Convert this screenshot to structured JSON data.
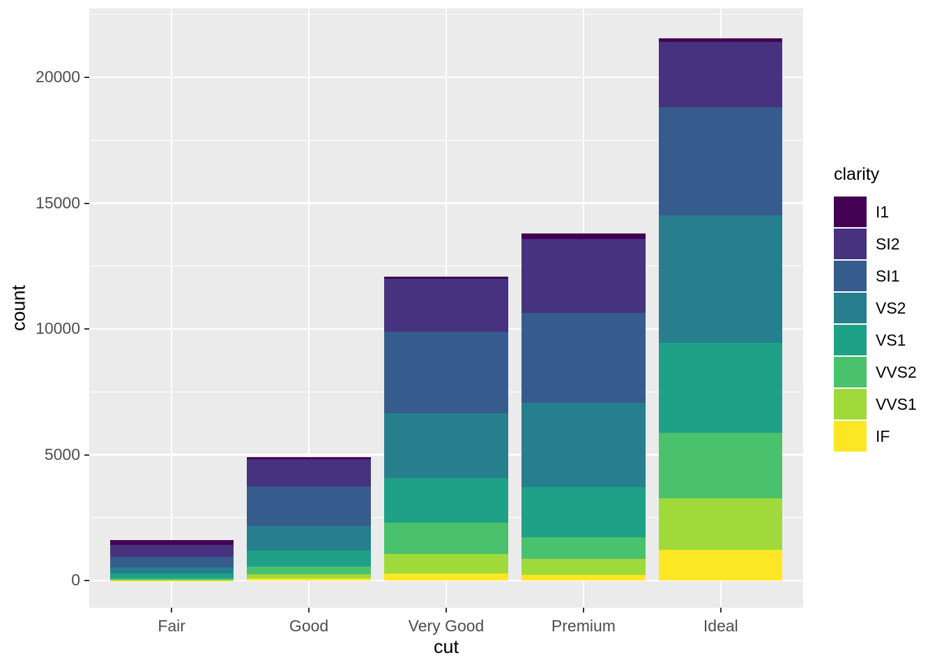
{
  "chart_data": {
    "type": "bar",
    "stacked": true,
    "xlabel": "cut",
    "ylabel": "count",
    "categories": [
      "Fair",
      "Good",
      "Very Good",
      "Premium",
      "Ideal"
    ],
    "series": [
      {
        "name": "I1",
        "color": "#440154",
        "values": [
          210,
          96,
          84,
          205,
          146
        ]
      },
      {
        "name": "SI2",
        "color": "#46327E",
        "values": [
          466,
          1081,
          2100,
          2949,
          2598
        ]
      },
      {
        "name": "SI1",
        "color": "#365C8D",
        "values": [
          408,
          1560,
          3240,
          3575,
          4282
        ]
      },
      {
        "name": "VS2",
        "color": "#277F8E",
        "values": [
          261,
          978,
          2591,
          3357,
          5071
        ]
      },
      {
        "name": "VS1",
        "color": "#1FA187",
        "values": [
          170,
          648,
          1775,
          1989,
          3589
        ]
      },
      {
        "name": "VVS2",
        "color": "#4AC16D",
        "values": [
          69,
          286,
          1235,
          870,
          2606
        ]
      },
      {
        "name": "VVS1",
        "color": "#9FDA3A",
        "values": [
          17,
          186,
          789,
          616,
          2047
        ]
      },
      {
        "name": "IF",
        "color": "#FDE725",
        "values": [
          9,
          71,
          268,
          230,
          1212
        ]
      }
    ],
    "totals": [
      1610,
      4906,
      12082,
      13791,
      21551
    ],
    "stack_note": "first series (I1) drawn at top of each bar, IF at bottom",
    "y_ticks": [
      {
        "label": "0",
        "value": 0
      },
      {
        "label": "5000",
        "value": 5000
      },
      {
        "label": "10000",
        "value": 10000
      },
      {
        "label": "15000",
        "value": 15000
      },
      {
        "label": "20000",
        "value": 20000
      }
    ],
    "y_minor_ticks": [
      2500,
      7500,
      12500,
      17500,
      22500
    ],
    "ylim_expanded": [
      -1078,
      22800
    ],
    "legend": {
      "title": "clarity",
      "position": "right"
    },
    "grid": "white major and minor horizontal lines, white vertical lines at category centers",
    "theme": {
      "panel_background": "#EBEBEB",
      "grid_color": "#FFFFFF",
      "tick_color": "#333333",
      "tick_label_color": "#4D4D4D",
      "title_color": "#000000",
      "figure_background": "#FFFFFF"
    }
  }
}
